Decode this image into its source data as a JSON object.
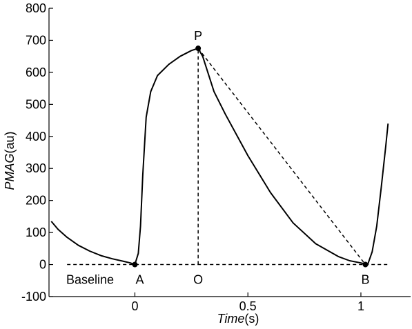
{
  "chart_data": {
    "type": "line",
    "xlabel": {
      "italic": "Time",
      "unit": "(s)"
    },
    "ylabel": {
      "italic": "PMAG",
      "unit": "(au)"
    },
    "xlim": [
      -0.38,
      1.22
    ],
    "ylim": [
      -100,
      800
    ],
    "xticks": [
      0,
      0.5,
      1
    ],
    "xtick_labels": [
      "0",
      "0.5",
      "1"
    ],
    "yticks": [
      -100,
      0,
      100,
      200,
      300,
      400,
      500,
      600,
      700,
      800
    ],
    "ytick_labels": [
      "-100",
      "0",
      "100",
      "200",
      "300",
      "400",
      "500",
      "600",
      "700",
      "800"
    ],
    "grid": false,
    "series": [
      {
        "style": "solid",
        "x": [
          -0.37,
          -0.34,
          -0.3,
          -0.25,
          -0.2,
          -0.15,
          -0.1,
          -0.05,
          -0.02,
          0.0,
          0.015,
          0.025,
          0.035,
          0.05,
          0.07,
          0.1,
          0.15,
          0.2,
          0.25,
          0.28,
          0.3,
          0.35,
          0.4,
          0.5,
          0.6,
          0.7,
          0.8,
          0.9,
          0.95,
          1.0,
          1.03,
          1.05,
          1.07,
          1.09,
          1.11,
          1.12
        ],
        "y": [
          135,
          110,
          85,
          60,
          42,
          28,
          18,
          10,
          5,
          0,
          35,
          120,
          280,
          460,
          540,
          590,
          625,
          650,
          668,
          675,
          650,
          540,
          470,
          340,
          225,
          130,
          65,
          25,
          12,
          5,
          0,
          40,
          120,
          240,
          370,
          440
        ]
      }
    ],
    "baseline": {
      "y": 0,
      "label": "Baseline",
      "style": "dashed"
    },
    "markers": [
      {
        "label": "A",
        "x": 0.0,
        "y": 0
      },
      {
        "label": "P",
        "x": 0.28,
        "y": 675
      },
      {
        "label": "B",
        "x": 1.02,
        "y": 0
      }
    ],
    "annotations": [
      {
        "label": "O",
        "x": 0.28
      }
    ],
    "dashed_segments": [
      {
        "from": [
          0.28,
          675
        ],
        "to": [
          1.02,
          0
        ]
      },
      {
        "from": [
          0.28,
          0
        ],
        "to": [
          0.28,
          675
        ]
      }
    ]
  }
}
